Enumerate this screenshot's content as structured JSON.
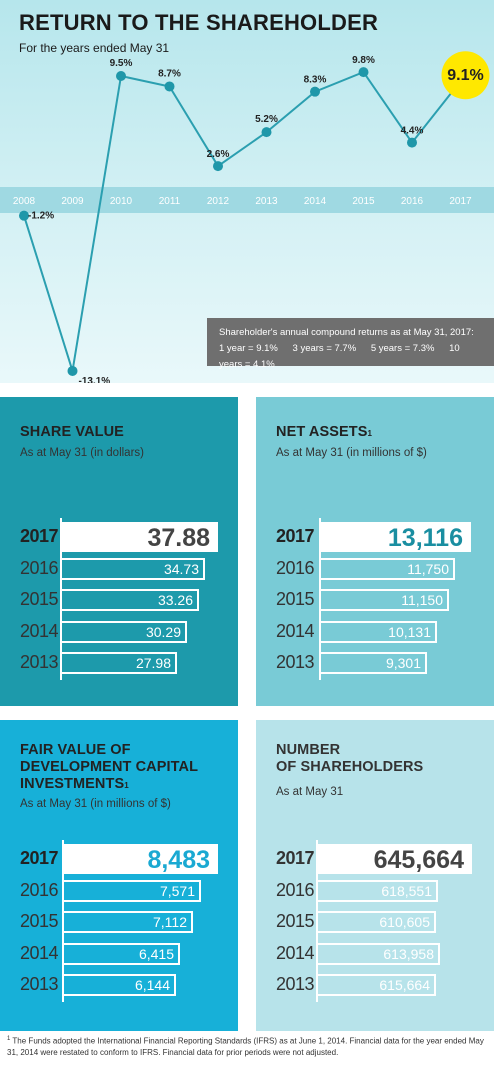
{
  "chart_data": [
    {
      "type": "line",
      "title": "RETURN TO THE SHAREHOLDER",
      "subtitle": "For the years ended May 31",
      "categories": [
        "2008",
        "2009",
        "2010",
        "2011",
        "2012",
        "2013",
        "2014",
        "2015",
        "2016",
        "2017"
      ],
      "series": [
        {
          "values": [
            -1.2,
            -13.1,
            9.5,
            8.7,
            2.6,
            5.2,
            8.3,
            9.8,
            4.4,
            9.1
          ]
        }
      ],
      "labels": [
        "-1.2%",
        "-13.1%",
        "9.5%",
        "8.7%",
        "2.6%",
        "5.2%",
        "8.3%",
        "9.8%",
        "4.4%",
        "9.1%"
      ],
      "highlight_index": 9,
      "note": {
        "heading": "Shareholder's annual compound returns as at May 31, 2017:",
        "items": [
          "1 year = 9.1%",
          "3 years = 7.7%",
          "5 years = 7.3%",
          "10 years = 4.1%"
        ]
      },
      "colors": {
        "line": "#2b9fb0",
        "point": "#1f97a9",
        "highlight": "#ffe800"
      }
    },
    {
      "type": "bar",
      "title": "SHARE VALUE",
      "subtitle": "As at May 31 (in dollars)",
      "categories": [
        "2017",
        "2016",
        "2015",
        "2014",
        "2013"
      ],
      "values": [
        37.88,
        34.73,
        33.26,
        30.29,
        27.98
      ],
      "labels": [
        "37.88",
        "34.73",
        "33.26",
        "30.29",
        "27.98"
      ],
      "color": "#1d9aab"
    },
    {
      "type": "bar",
      "title": "NET ASSETS",
      "title_sup": "1",
      "subtitle": "As at May 31 (in millions of $)",
      "categories": [
        "2017",
        "2016",
        "2015",
        "2014",
        "2013"
      ],
      "values": [
        13116,
        11750,
        11150,
        10131,
        9301
      ],
      "labels": [
        "13,116",
        "11,750",
        "11,150",
        "10,131",
        "9,301"
      ],
      "color": "#79cbd6"
    },
    {
      "type": "bar",
      "title_lines": [
        "FAIR VALUE OF",
        "DEVELOPMENT CAPITAL",
        "INVESTMENTS"
      ],
      "title_sup": "1",
      "subtitle": "As at May 31 (in millions of $)",
      "categories": [
        "2017",
        "2016",
        "2015",
        "2014",
        "2013"
      ],
      "values": [
        8483,
        7571,
        7112,
        6415,
        6144
      ],
      "labels": [
        "8,483",
        "7,571",
        "7,112",
        "6,415",
        "6,144"
      ],
      "color": "#17b0d8"
    },
    {
      "type": "bar",
      "title_lines": [
        "NUMBER",
        "OF SHAREHOLDERS"
      ],
      "subtitle": "As at May 31",
      "categories": [
        "2017",
        "2016",
        "2015",
        "2014",
        "2013"
      ],
      "values": [
        645664,
        618551,
        610605,
        613958,
        615664
      ],
      "labels": [
        "645,664",
        "618,551",
        "610,605",
        "613,958",
        "615,664"
      ],
      "color": "#b7e3ea"
    }
  ],
  "footnote": {
    "sup": "1",
    "text": "The Funds adopted the International Financial Reporting Standards (IFRS) as at June 1, 2014. Financial data for the year ended May 31, 2014 were restated to conform to IFRS. Financial data for prior periods were not adjusted."
  }
}
